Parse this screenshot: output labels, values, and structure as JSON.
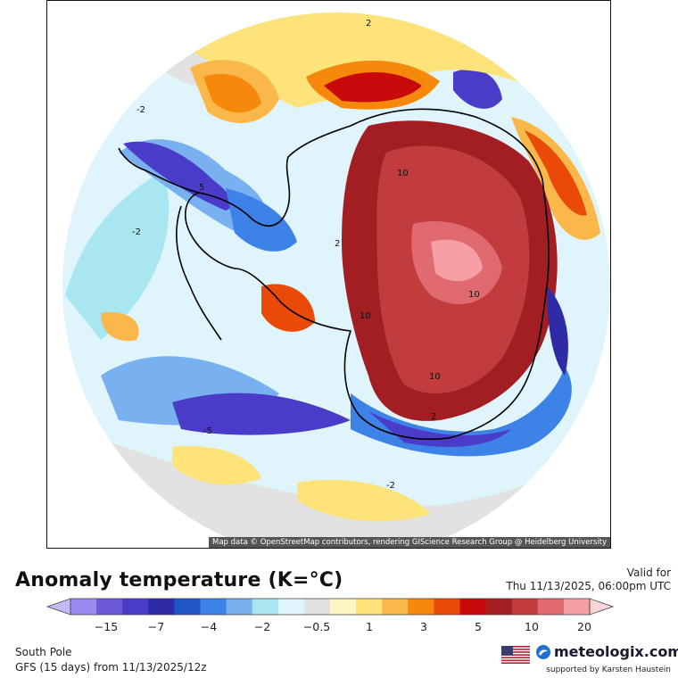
{
  "map": {
    "attribution": "Map data © OpenStreetMap contributors, rendering GIScience Research Group @ Heidelberg University",
    "contour_labels": [
      "2",
      "-2",
      "5",
      "10",
      "-2",
      "2",
      "-5",
      "10",
      "10",
      "2",
      "-2",
      "10"
    ]
  },
  "title": "Anomaly temperature (K=°C)",
  "valid": {
    "label": "Valid for",
    "time": "Thu 11/13/2025, 06:00pm UTC"
  },
  "legend": {
    "tick_labels": [
      "−15",
      "−7",
      "−4",
      "−2",
      "−0.5",
      "1",
      "3",
      "5",
      "10",
      "20"
    ],
    "colors": [
      "#c4b9f6",
      "#9a8bf0",
      "#6c5ad8",
      "#4a3bc8",
      "#2f2ba6",
      "#1f55c6",
      "#3d82e6",
      "#78b0f0",
      "#a8e6f2",
      "#dff4fb",
      "#e2e2e2",
      "#fdf5c4",
      "#fde37a",
      "#fbb84a",
      "#f6890c",
      "#ea4a08",
      "#c90a0a",
      "#a21e22",
      "#c23b3d",
      "#df6a6f",
      "#f6a0a6",
      "#fbd4d8"
    ]
  },
  "footer": {
    "region": "South Pole",
    "model": "GFS (15 days) from 11/13/2025/12z",
    "brand": "meteologix.com",
    "supported": "supported by Karsten Haustein"
  }
}
